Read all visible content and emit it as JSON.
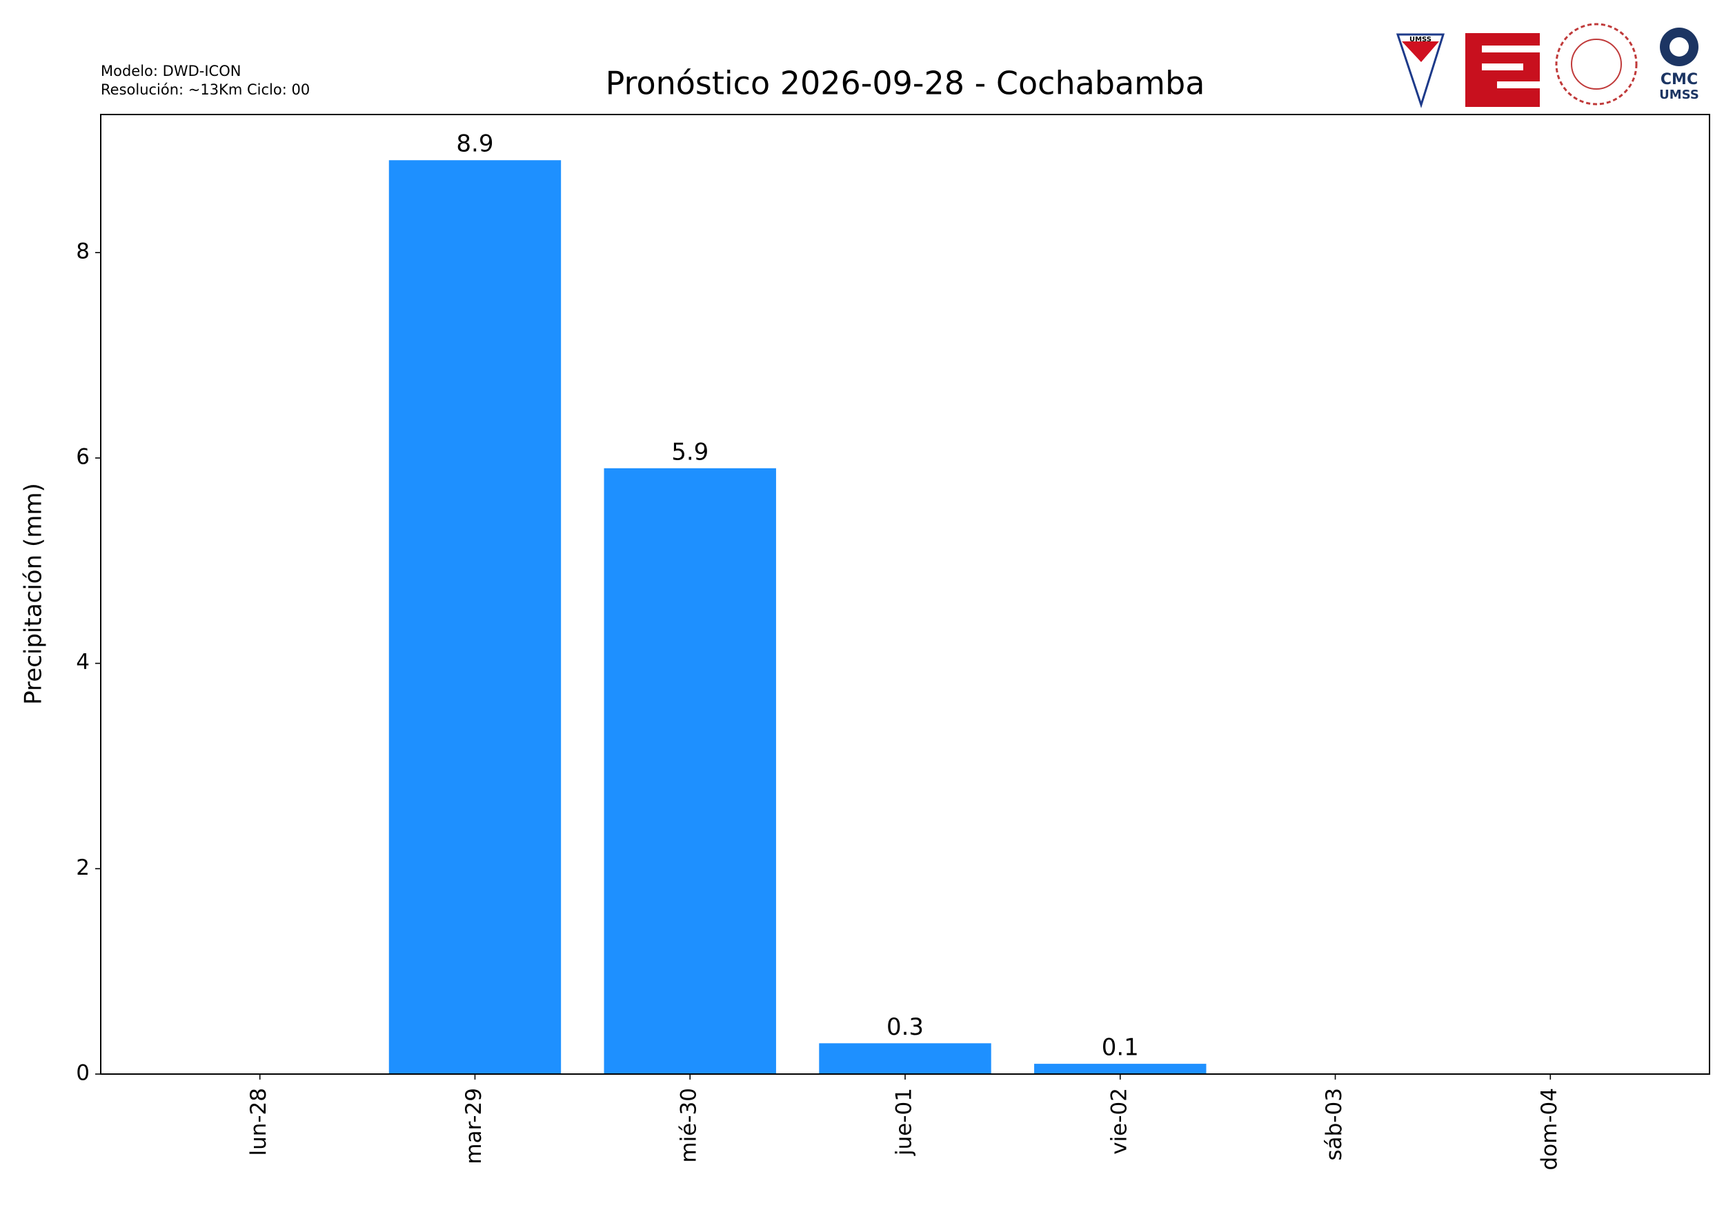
{
  "chart_data": {
    "type": "bar",
    "title": "Pronóstico 2026-09-28 - Cochabamba",
    "notes": [
      "Modelo: DWD-ICON",
      "Resolución: ~13Km Ciclo: 00"
    ],
    "logo_texts": [
      "UMSS",
      "CMC",
      "UMSS"
    ],
    "y_label": "Precipitación (mm)",
    "categories": [
      "lun-28",
      "mar-29",
      "mié-30",
      "jue-01",
      "vie-02",
      "sáb-03",
      "dom-04"
    ],
    "values": [
      0,
      8.9,
      5.9,
      0.3,
      0.1,
      0,
      0
    ],
    "value_labels": [
      null,
      "8.9",
      "5.9",
      "0.3",
      "0.1",
      null,
      null
    ],
    "color": "#1e90ff",
    "ylim": [
      0,
      9.345
    ],
    "yticks": [
      0,
      2,
      4,
      6,
      8
    ],
    "grid": false
  }
}
